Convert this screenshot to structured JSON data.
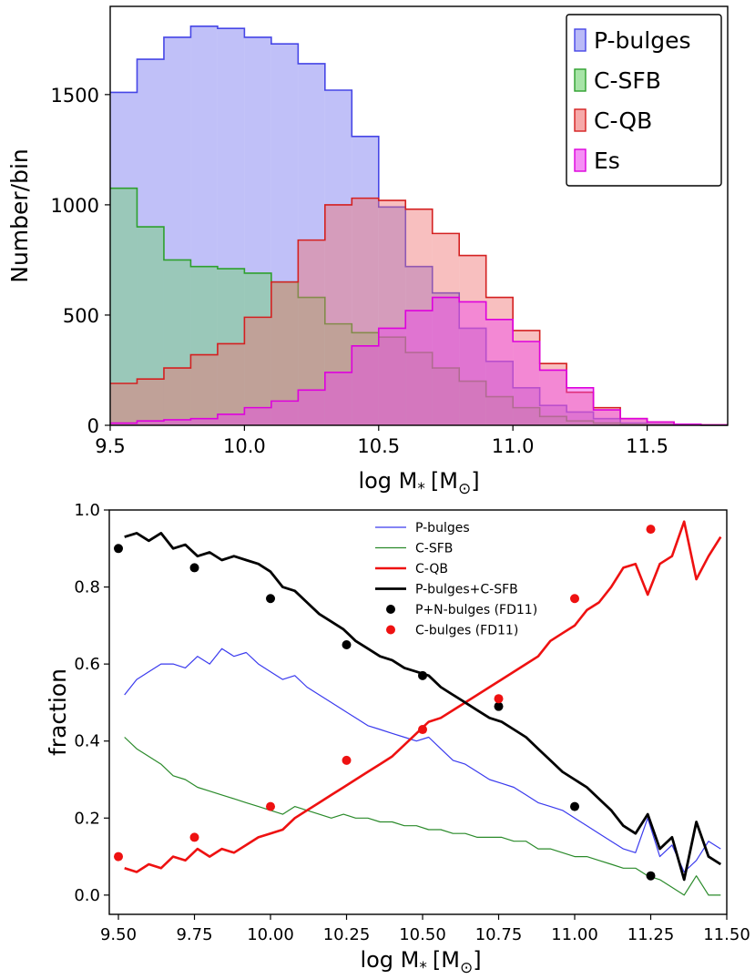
{
  "chart_data": [
    {
      "type": "histogram",
      "xlabel": "log M",
      "xlabel_sub": "*",
      "xlabel_unit_open": "[M",
      "xlabel_unit_sub": "⊙",
      "xlabel_unit_close": "]",
      "ylabel": "Number/bin",
      "xlim": [
        9.5,
        11.8
      ],
      "ylim": [
        0,
        1900
      ],
      "bin_width": 0.1,
      "bin_start": 9.5,
      "xticks": [
        9.5,
        10.0,
        10.5,
        11.0,
        11.5
      ],
      "xtick_labels": [
        "9.5",
        "10.0",
        "10.5",
        "11.0",
        "11.5"
      ],
      "yticks": [
        0,
        500,
        1000,
        1500
      ],
      "ytick_labels": [
        "0",
        "500",
        "1000",
        "1500"
      ],
      "legend_position": "top-right",
      "series": [
        {
          "name": "P-bulges",
          "fill": "#8c8cf2",
          "stroke": "#4646e6",
          "opacity": 0.55,
          "values": [
            1510,
            1660,
            1760,
            1810,
            1800,
            1760,
            1730,
            1640,
            1520,
            1310,
            990,
            720,
            600,
            440,
            290,
            170,
            90,
            60,
            30,
            10,
            5,
            2,
            1
          ]
        },
        {
          "name": "C-SFB",
          "fill": "#6cd26c",
          "stroke": "#2ea02e",
          "opacity": 0.45,
          "values": [
            1075,
            900,
            750,
            720,
            710,
            690,
            650,
            580,
            460,
            420,
            400,
            330,
            260,
            200,
            130,
            80,
            40,
            20,
            10,
            5,
            2,
            1,
            0
          ]
        },
        {
          "name": "C-QB",
          "fill": "#f07070",
          "stroke": "#d42020",
          "opacity": 0.45,
          "values": [
            190,
            210,
            260,
            320,
            370,
            490,
            650,
            840,
            1000,
            1030,
            1020,
            980,
            870,
            770,
            580,
            430,
            280,
            150,
            80,
            30,
            15,
            5,
            2
          ]
        },
        {
          "name": "Es",
          "fill": "#ee44ee",
          "stroke": "#dd00dd",
          "opacity": 0.45,
          "values": [
            10,
            20,
            25,
            30,
            50,
            80,
            110,
            160,
            240,
            360,
            440,
            520,
            580,
            560,
            480,
            380,
            250,
            170,
            70,
            30,
            15,
            5,
            2
          ]
        }
      ]
    },
    {
      "type": "line",
      "xlabel": "log M",
      "xlabel_sub": "*",
      "xlabel_unit_open": "[M",
      "xlabel_unit_sub": "⊙",
      "xlabel_unit_close": "]",
      "ylabel": "fraction",
      "xlim": [
        9.47,
        11.5
      ],
      "ylim": [
        -0.05,
        1.0
      ],
      "xticks": [
        9.5,
        9.75,
        10.0,
        10.25,
        10.5,
        10.75,
        11.0,
        11.25,
        11.5
      ],
      "xtick_labels": [
        "9.50",
        "9.75",
        "10.00",
        "10.25",
        "10.50",
        "10.75",
        "11.00",
        "11.25",
        "11.50"
      ],
      "yticks": [
        0.0,
        0.2,
        0.4,
        0.6,
        0.8,
        1.0
      ],
      "ytick_labels": [
        "0.0",
        "0.2",
        "0.4",
        "0.6",
        "0.8",
        "1.0"
      ],
      "legend_position": "upper-center",
      "x": [
        9.52,
        9.56,
        9.6,
        9.64,
        9.68,
        9.72,
        9.76,
        9.8,
        9.84,
        9.88,
        9.92,
        9.96,
        10.0,
        10.04,
        10.08,
        10.12,
        10.16,
        10.2,
        10.24,
        10.28,
        10.32,
        10.36,
        10.4,
        10.44,
        10.48,
        10.52,
        10.56,
        10.6,
        10.64,
        10.68,
        10.72,
        10.76,
        10.8,
        10.84,
        10.88,
        10.92,
        10.96,
        11.0,
        11.04,
        11.08,
        11.12,
        11.16,
        11.2,
        11.24,
        11.28,
        11.32,
        11.36,
        11.4,
        11.44,
        11.48
      ],
      "series": [
        {
          "name": "P-bulges",
          "color": "#3a3aee",
          "width": 1.2,
          "values": [
            0.52,
            0.56,
            0.58,
            0.6,
            0.6,
            0.59,
            0.62,
            0.6,
            0.64,
            0.62,
            0.63,
            0.6,
            0.58,
            0.56,
            0.57,
            0.54,
            0.52,
            0.5,
            0.48,
            0.46,
            0.44,
            0.43,
            0.42,
            0.41,
            0.4,
            0.41,
            0.38,
            0.35,
            0.34,
            0.32,
            0.3,
            0.29,
            0.28,
            0.26,
            0.24,
            0.23,
            0.22,
            0.2,
            0.18,
            0.16,
            0.14,
            0.12,
            0.11,
            0.2,
            0.1,
            0.13,
            0.06,
            0.09,
            0.14,
            0.12
          ]
        },
        {
          "name": "C-SFB",
          "color": "#2a8a2a",
          "width": 1.2,
          "values": [
            0.41,
            0.38,
            0.36,
            0.34,
            0.31,
            0.3,
            0.28,
            0.27,
            0.26,
            0.25,
            0.24,
            0.23,
            0.22,
            0.21,
            0.23,
            0.22,
            0.21,
            0.2,
            0.21,
            0.2,
            0.2,
            0.19,
            0.19,
            0.18,
            0.18,
            0.17,
            0.17,
            0.16,
            0.16,
            0.15,
            0.15,
            0.15,
            0.14,
            0.14,
            0.12,
            0.12,
            0.11,
            0.1,
            0.1,
            0.09,
            0.08,
            0.07,
            0.07,
            0.05,
            0.04,
            0.02,
            0.0,
            0.05,
            0.0,
            0.0
          ]
        },
        {
          "name": "C-QB",
          "color": "#ee1111",
          "width": 2.6,
          "values": [
            0.07,
            0.06,
            0.08,
            0.07,
            0.1,
            0.09,
            0.12,
            0.1,
            0.12,
            0.11,
            0.13,
            0.15,
            0.16,
            0.17,
            0.2,
            0.22,
            0.24,
            0.26,
            0.28,
            0.3,
            0.32,
            0.34,
            0.36,
            0.39,
            0.42,
            0.45,
            0.46,
            0.48,
            0.5,
            0.52,
            0.54,
            0.56,
            0.58,
            0.6,
            0.62,
            0.66,
            0.68,
            0.7,
            0.74,
            0.76,
            0.8,
            0.85,
            0.86,
            0.78,
            0.86,
            0.88,
            0.97,
            0.82,
            0.88,
            0.93
          ]
        },
        {
          "name": "P-bulges+C-SFB",
          "color": "#000000",
          "width": 2.8,
          "values": [
            0.93,
            0.94,
            0.92,
            0.94,
            0.9,
            0.91,
            0.88,
            0.89,
            0.87,
            0.88,
            0.87,
            0.86,
            0.84,
            0.8,
            0.79,
            0.76,
            0.73,
            0.71,
            0.69,
            0.66,
            0.64,
            0.62,
            0.61,
            0.59,
            0.58,
            0.57,
            0.54,
            0.52,
            0.5,
            0.48,
            0.46,
            0.45,
            0.43,
            0.41,
            0.38,
            0.35,
            0.32,
            0.3,
            0.28,
            0.25,
            0.22,
            0.18,
            0.16,
            0.21,
            0.12,
            0.15,
            0.04,
            0.19,
            0.1,
            0.08
          ]
        }
      ],
      "scatter": [
        {
          "name": "P+N-bulges (FD11)",
          "color": "#000000",
          "x": [
            9.5,
            9.75,
            10.0,
            10.25,
            10.5,
            10.75,
            11.0,
            11.25
          ],
          "y": [
            0.9,
            0.85,
            0.77,
            0.65,
            0.57,
            0.49,
            0.23,
            0.05
          ]
        },
        {
          "name": "C-bulges (FD11)",
          "color": "#ee1111",
          "x": [
            9.5,
            9.75,
            10.0,
            10.25,
            10.5,
            10.75,
            11.0,
            11.25
          ],
          "y": [
            0.1,
            0.15,
            0.23,
            0.35,
            0.43,
            0.51,
            0.77,
            0.95
          ]
        }
      ]
    }
  ]
}
